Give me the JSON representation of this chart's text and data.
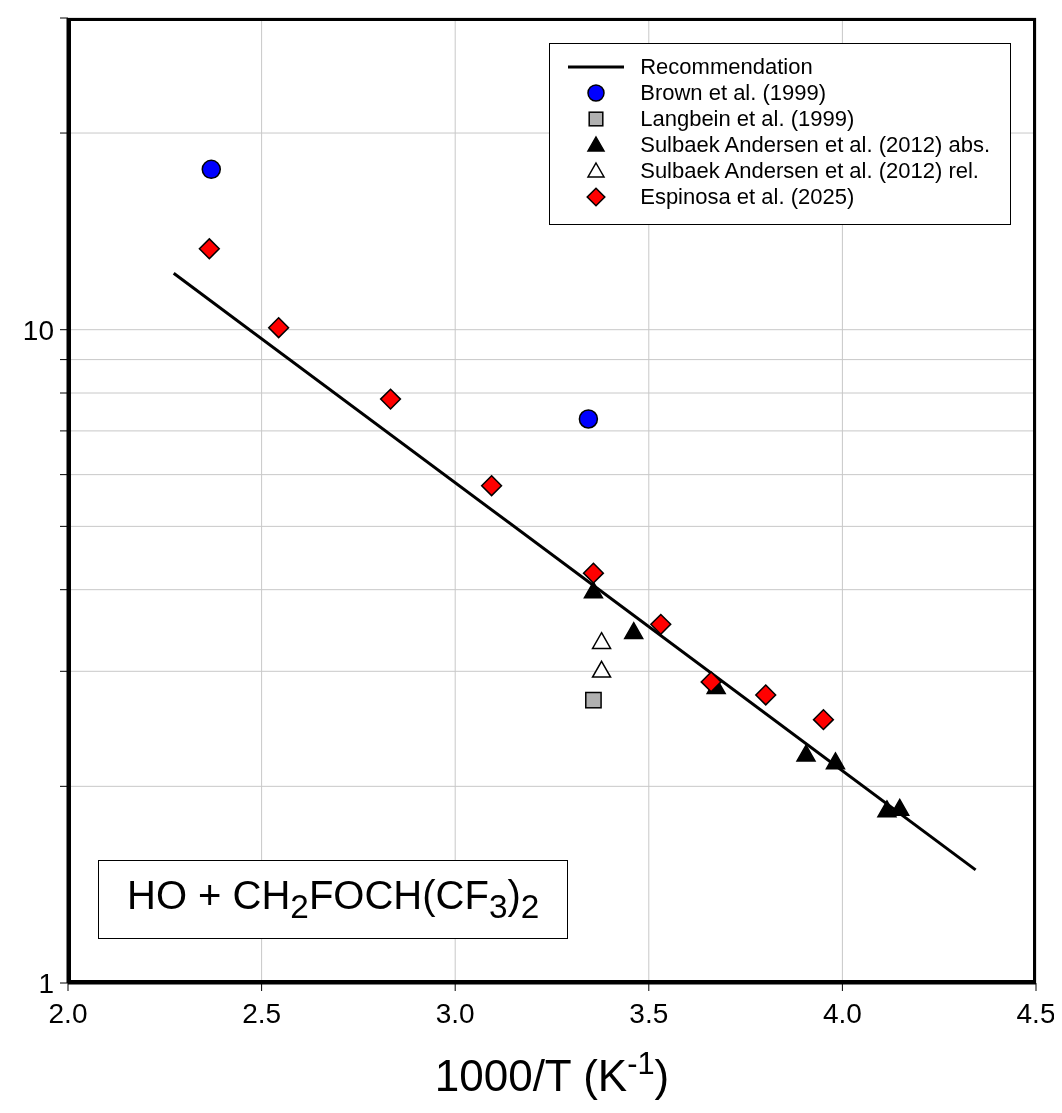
{
  "chart_data": {
    "type": "scatter",
    "xlabel": "1000/T (K$^{-1}$)",
    "xlim": [
      2,
      4.5
    ],
    "xticks": [
      {
        "value": 2,
        "label": "2.0"
      },
      {
        "value": 2.5,
        "label": "2.5"
      },
      {
        "value": 3,
        "label": "3.0"
      },
      {
        "value": 3.5,
        "label": "3.5"
      },
      {
        "value": 4,
        "label": "4.0"
      },
      {
        "value": 4.5,
        "label": "4.5"
      }
    ],
    "ylim": [
      1,
      30
    ],
    "yticks": [
      1,
      {
        "value": 2,
        "label": null
      },
      {
        "value": 3,
        "label": null
      },
      {
        "value": 4,
        "label": null
      },
      {
        "value": 5,
        "label": null
      },
      {
        "value": 6,
        "label": null
      },
      {
        "value": 7,
        "label": null
      },
      {
        "value": 8,
        "label": null
      },
      {
        "value": 9,
        "label": null
      },
      10,
      {
        "value": 20,
        "label": null
      },
      {
        "value": 30,
        "label": null
      }
    ],
    "log": "y",
    "grid": true,
    "legend": "top right",
    "annotations": [
      "HO + CH$_{2}$FOCH(CF$_{3}$)$_{2}$"
    ],
    "series": [
      {
        "name": "Recommendation",
        "type": "line",
        "color": "#000000",
        "marker": "none",
        "line_style": "solid",
        "x": [
          2.273,
          4.344
        ],
        "values": [
          12.2,
          1.49
        ]
      },
      {
        "name": "Brown et al. (1999)",
        "color": "#0000ff",
        "marker": "circle",
        "x": [
          2.37,
          3.344
        ],
        "values": [
          17.6,
          7.3
        ]
      },
      {
        "name": "Langbein et al. (1999)",
        "color": "#b0b0b0",
        "marker": "square",
        "x": [
          3.357
        ],
        "values": [
          2.71
        ]
      },
      {
        "name": "Sulbaek Andersen et al. (2012) abs.",
        "color": "#000000",
        "marker": "triangle",
        "x": [
          3.357,
          3.461,
          3.674,
          3.906,
          3.982,
          4.115,
          4.148
        ],
        "values": [
          3.98,
          3.45,
          2.84,
          2.24,
          2.18,
          1.84,
          1.85
        ]
      },
      {
        "name": "Sulbaek Andersen et al. (2012) rel.",
        "color": "#ffffff",
        "marker": "triangle",
        "x": [
          3.378,
          3.378
        ],
        "values": [
          3.33,
          3.01
        ]
      },
      {
        "name": "Espinosa et al. (2025)",
        "color": "#ff0000",
        "marker": "diamond",
        "x": [
          2.365,
          2.544,
          2.833,
          3.094,
          3.357,
          3.531,
          3.661,
          3.802,
          3.951
        ],
        "values": [
          13.3,
          10.07,
          7.83,
          5.77,
          4.24,
          3.54,
          2.89,
          2.76,
          2.53
        ]
      }
    ]
  }
}
